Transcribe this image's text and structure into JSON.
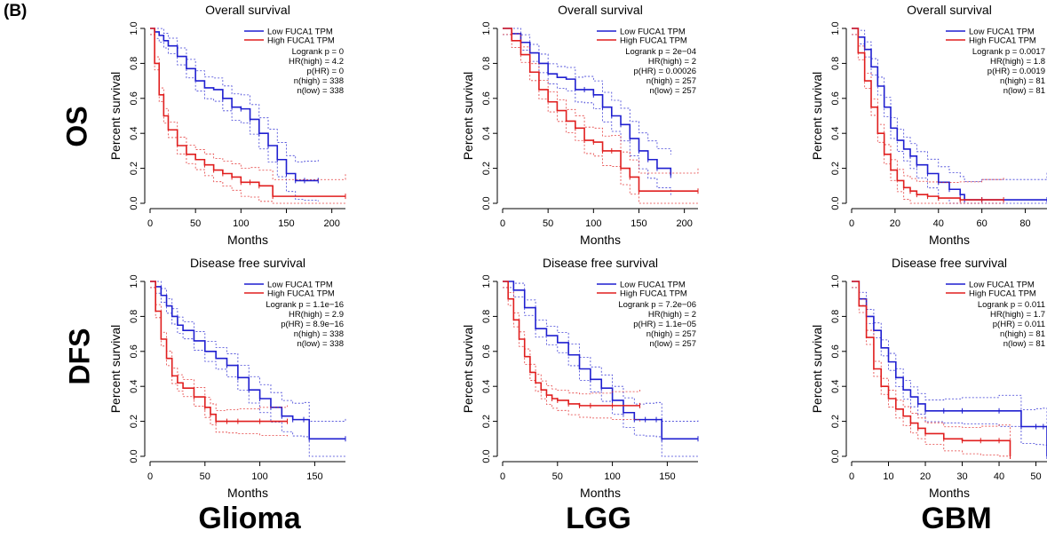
{
  "figure": {
    "panel_label": "(B)",
    "row_labels": [
      "OS",
      "DFS"
    ],
    "column_labels": [
      "Glioma",
      "LGG",
      "GBM"
    ],
    "colors": {
      "low": "#1f1fd0",
      "high": "#e01e1e"
    }
  },
  "chart_data": [
    {
      "type": "line",
      "id": "os_glioma",
      "title": "Overall survival",
      "xlabel": "Months",
      "ylabel": "Percent survival",
      "xlim": [
        0,
        215
      ],
      "ylim": [
        0,
        1.0
      ],
      "xticks": [
        0,
        50,
        100,
        150,
        200
      ],
      "yticks": [
        0,
        0.2,
        0.4,
        0.6,
        0.8,
        1.0
      ],
      "legend": [
        "Low FUCA1 TPM",
        "High FUCA1 TPM"
      ],
      "stats": [
        "Logrank p = 0",
        "HR(high) = 4.2",
        "p(HR) = 0",
        "n(high) = 338",
        "n(low) = 338"
      ],
      "series": [
        {
          "name": "Low FUCA1 TPM",
          "x": [
            0,
            5,
            10,
            15,
            20,
            30,
            40,
            50,
            60,
            70,
            80,
            90,
            100,
            110,
            120,
            130,
            140,
            150,
            160,
            170,
            185
          ],
          "y": [
            1.0,
            0.98,
            0.96,
            0.93,
            0.9,
            0.84,
            0.77,
            0.7,
            0.66,
            0.65,
            0.6,
            0.55,
            0.54,
            0.48,
            0.4,
            0.33,
            0.25,
            0.17,
            0.13,
            0.13,
            0.13
          ]
        },
        {
          "name": "High FUCA1 TPM",
          "x": [
            0,
            5,
            10,
            15,
            20,
            30,
            40,
            50,
            60,
            70,
            80,
            90,
            100,
            110,
            120,
            135,
            215
          ],
          "y": [
            1.0,
            0.8,
            0.62,
            0.5,
            0.42,
            0.33,
            0.28,
            0.25,
            0.22,
            0.19,
            0.17,
            0.15,
            0.12,
            0.12,
            0.1,
            0.04,
            0.04
          ]
        }
      ]
    },
    {
      "type": "line",
      "id": "os_lgg",
      "title": "Overall survival",
      "xlabel": "Months",
      "ylabel": "Percent survival",
      "xlim": [
        0,
        215
      ],
      "ylim": [
        0,
        1.0
      ],
      "xticks": [
        0,
        50,
        100,
        150,
        200
      ],
      "yticks": [
        0,
        0.2,
        0.4,
        0.6,
        0.8,
        1.0
      ],
      "legend": [
        "Low FUCA1 TPM",
        "High FUCA1 TPM"
      ],
      "stats": [
        "Logrank p = 2e−04",
        "HR(high) = 2",
        "p(HR) = 0.00026",
        "n(high) = 257",
        "n(low) = 257"
      ],
      "series": [
        {
          "name": "Low FUCA1 TPM",
          "x": [
            0,
            10,
            20,
            30,
            40,
            50,
            60,
            70,
            80,
            90,
            100,
            110,
            120,
            130,
            140,
            150,
            160,
            170,
            185
          ],
          "y": [
            1.0,
            0.97,
            0.92,
            0.86,
            0.8,
            0.74,
            0.72,
            0.71,
            0.65,
            0.65,
            0.62,
            0.55,
            0.5,
            0.45,
            0.37,
            0.3,
            0.25,
            0.2,
            0.16
          ]
        },
        {
          "name": "High FUCA1 TPM",
          "x": [
            0,
            10,
            20,
            30,
            40,
            50,
            60,
            70,
            80,
            90,
            100,
            110,
            120,
            130,
            140,
            150,
            215
          ],
          "y": [
            1.0,
            0.93,
            0.85,
            0.75,
            0.65,
            0.58,
            0.53,
            0.47,
            0.43,
            0.36,
            0.35,
            0.3,
            0.3,
            0.2,
            0.15,
            0.07,
            0.07
          ]
        }
      ]
    },
    {
      "type": "line",
      "id": "os_gbm",
      "title": "Overall survival",
      "xlabel": "Months",
      "ylabel": "Percent survival",
      "xlim": [
        0,
        90
      ],
      "ylim": [
        0,
        1.0
      ],
      "xticks": [
        0,
        20,
        40,
        60,
        80
      ],
      "yticks": [
        0,
        0.2,
        0.4,
        0.6,
        0.8,
        1.0
      ],
      "legend": [
        "Low FUCA1 TPM",
        "High FUCA1 TPM"
      ],
      "stats": [
        "Logrank p = 0.0017",
        "HR(high) = 1.8",
        "p(HR) = 0.0019",
        "n(high) = 81",
        "n(low) = 81"
      ],
      "series": [
        {
          "name": "Low FUCA1 TPM",
          "x": [
            0,
            3,
            6,
            9,
            12,
            15,
            18,
            21,
            24,
            27,
            30,
            35,
            40,
            45,
            50,
            52,
            60,
            90
          ],
          "y": [
            1.0,
            0.95,
            0.88,
            0.78,
            0.67,
            0.55,
            0.43,
            0.36,
            0.31,
            0.27,
            0.22,
            0.17,
            0.12,
            0.08,
            0.05,
            0.02,
            0.02,
            0.02
          ]
        },
        {
          "name": "High FUCA1 TPM",
          "x": [
            0,
            3,
            6,
            9,
            12,
            15,
            18,
            21,
            24,
            27,
            30,
            35,
            40,
            50,
            60,
            70
          ],
          "y": [
            1.0,
            0.86,
            0.7,
            0.55,
            0.4,
            0.28,
            0.19,
            0.13,
            0.09,
            0.07,
            0.05,
            0.04,
            0.03,
            0.02,
            0.02,
            0.02
          ]
        }
      ]
    },
    {
      "type": "line",
      "id": "dfs_glioma",
      "title": "Disease free survival",
      "xlabel": "Months",
      "ylabel": "Percent survival",
      "xlim": [
        0,
        178
      ],
      "ylim": [
        0,
        1.0
      ],
      "xticks": [
        0,
        50,
        100,
        150
      ],
      "yticks": [
        0,
        0.2,
        0.4,
        0.6,
        0.8,
        1.0
      ],
      "legend": [
        "Low FUCA1 TPM",
        "High FUCA1 TPM"
      ],
      "stats": [
        "Logrank p = 1.1e−16",
        "HR(high) = 2.9",
        "p(HR) = 8.9e−16",
        "n(high) = 338",
        "n(low) = 338"
      ],
      "series": [
        {
          "name": "Low FUCA1 TPM",
          "x": [
            0,
            5,
            10,
            15,
            20,
            25,
            30,
            40,
            50,
            60,
            70,
            80,
            90,
            100,
            110,
            120,
            130,
            140,
            145,
            178
          ],
          "y": [
            1.0,
            0.97,
            0.92,
            0.86,
            0.8,
            0.75,
            0.72,
            0.66,
            0.6,
            0.56,
            0.52,
            0.45,
            0.38,
            0.33,
            0.28,
            0.23,
            0.21,
            0.21,
            0.1,
            0.1
          ]
        },
        {
          "name": "High FUCA1 TPM",
          "x": [
            0,
            5,
            10,
            15,
            20,
            25,
            30,
            40,
            50,
            55,
            60,
            70,
            80,
            100,
            125
          ],
          "y": [
            1.0,
            0.83,
            0.67,
            0.56,
            0.46,
            0.42,
            0.39,
            0.34,
            0.28,
            0.24,
            0.2,
            0.2,
            0.2,
            0.2,
            0.2
          ]
        }
      ]
    },
    {
      "type": "line",
      "id": "dfs_lgg",
      "title": "Disease free survival",
      "xlabel": "Months",
      "ylabel": "Percent survival",
      "xlim": [
        0,
        178
      ],
      "ylim": [
        0,
        1.0
      ],
      "xticks": [
        0,
        50,
        100,
        150
      ],
      "yticks": [
        0,
        0.2,
        0.4,
        0.6,
        0.8,
        1.0
      ],
      "legend": [
        "Low FUCA1 TPM",
        "High FUCA1 TPM"
      ],
      "stats": [
        "Logrank p = 7.2e−06",
        "HR(high) = 2",
        "p(HR) = 1.1e−05",
        "n(high) = 257",
        "n(low) = 257"
      ],
      "series": [
        {
          "name": "Low FUCA1 TPM",
          "x": [
            0,
            10,
            20,
            30,
            40,
            50,
            60,
            70,
            80,
            90,
            100,
            110,
            120,
            130,
            140,
            145,
            178
          ],
          "y": [
            1.0,
            0.95,
            0.85,
            0.73,
            0.69,
            0.65,
            0.58,
            0.5,
            0.44,
            0.39,
            0.32,
            0.25,
            0.21,
            0.21,
            0.21,
            0.1,
            0.1
          ]
        },
        {
          "name": "High FUCA1 TPM",
          "x": [
            0,
            5,
            10,
            15,
            20,
            25,
            30,
            35,
            40,
            45,
            50,
            60,
            70,
            80,
            100,
            125
          ],
          "y": [
            1.0,
            0.9,
            0.78,
            0.67,
            0.57,
            0.48,
            0.42,
            0.38,
            0.35,
            0.33,
            0.32,
            0.3,
            0.29,
            0.29,
            0.29,
            0.29
          ]
        }
      ]
    },
    {
      "type": "line",
      "id": "dfs_gbm",
      "title": "Disease free survival",
      "xlabel": "Months",
      "ylabel": "Percent survival",
      "xlim": [
        0,
        53
      ],
      "ylim": [
        0,
        1.0
      ],
      "xticks": [
        0,
        10,
        20,
        30,
        40,
        50
      ],
      "yticks": [
        0,
        0.2,
        0.4,
        0.6,
        0.8,
        1.0
      ],
      "legend": [
        "Low FUCA1 TPM",
        "High FUCA1 TPM"
      ],
      "stats": [
        "Logrank p = 0.011",
        "HR(high) = 1.7",
        "p(HR) = 0.011",
        "n(high) = 81",
        "n(low) = 81"
      ],
      "series": [
        {
          "name": "Low FUCA1 TPM",
          "x": [
            0,
            2,
            4,
            6,
            8,
            10,
            12,
            14,
            16,
            18,
            20,
            25,
            30,
            40,
            46,
            50,
            52,
            53
          ],
          "y": [
            1.0,
            0.9,
            0.8,
            0.72,
            0.62,
            0.54,
            0.45,
            0.38,
            0.34,
            0.3,
            0.26,
            0.26,
            0.26,
            0.26,
            0.17,
            0.17,
            0.17,
            0.0
          ]
        },
        {
          "name": "High FUCA1 TPM",
          "x": [
            0,
            2,
            4,
            6,
            8,
            10,
            12,
            14,
            16,
            18,
            20,
            25,
            30,
            35,
            40,
            43
          ],
          "y": [
            1.0,
            0.86,
            0.68,
            0.5,
            0.4,
            0.33,
            0.27,
            0.23,
            0.19,
            0.16,
            0.13,
            0.1,
            0.09,
            0.09,
            0.09,
            0.0
          ]
        }
      ]
    }
  ]
}
